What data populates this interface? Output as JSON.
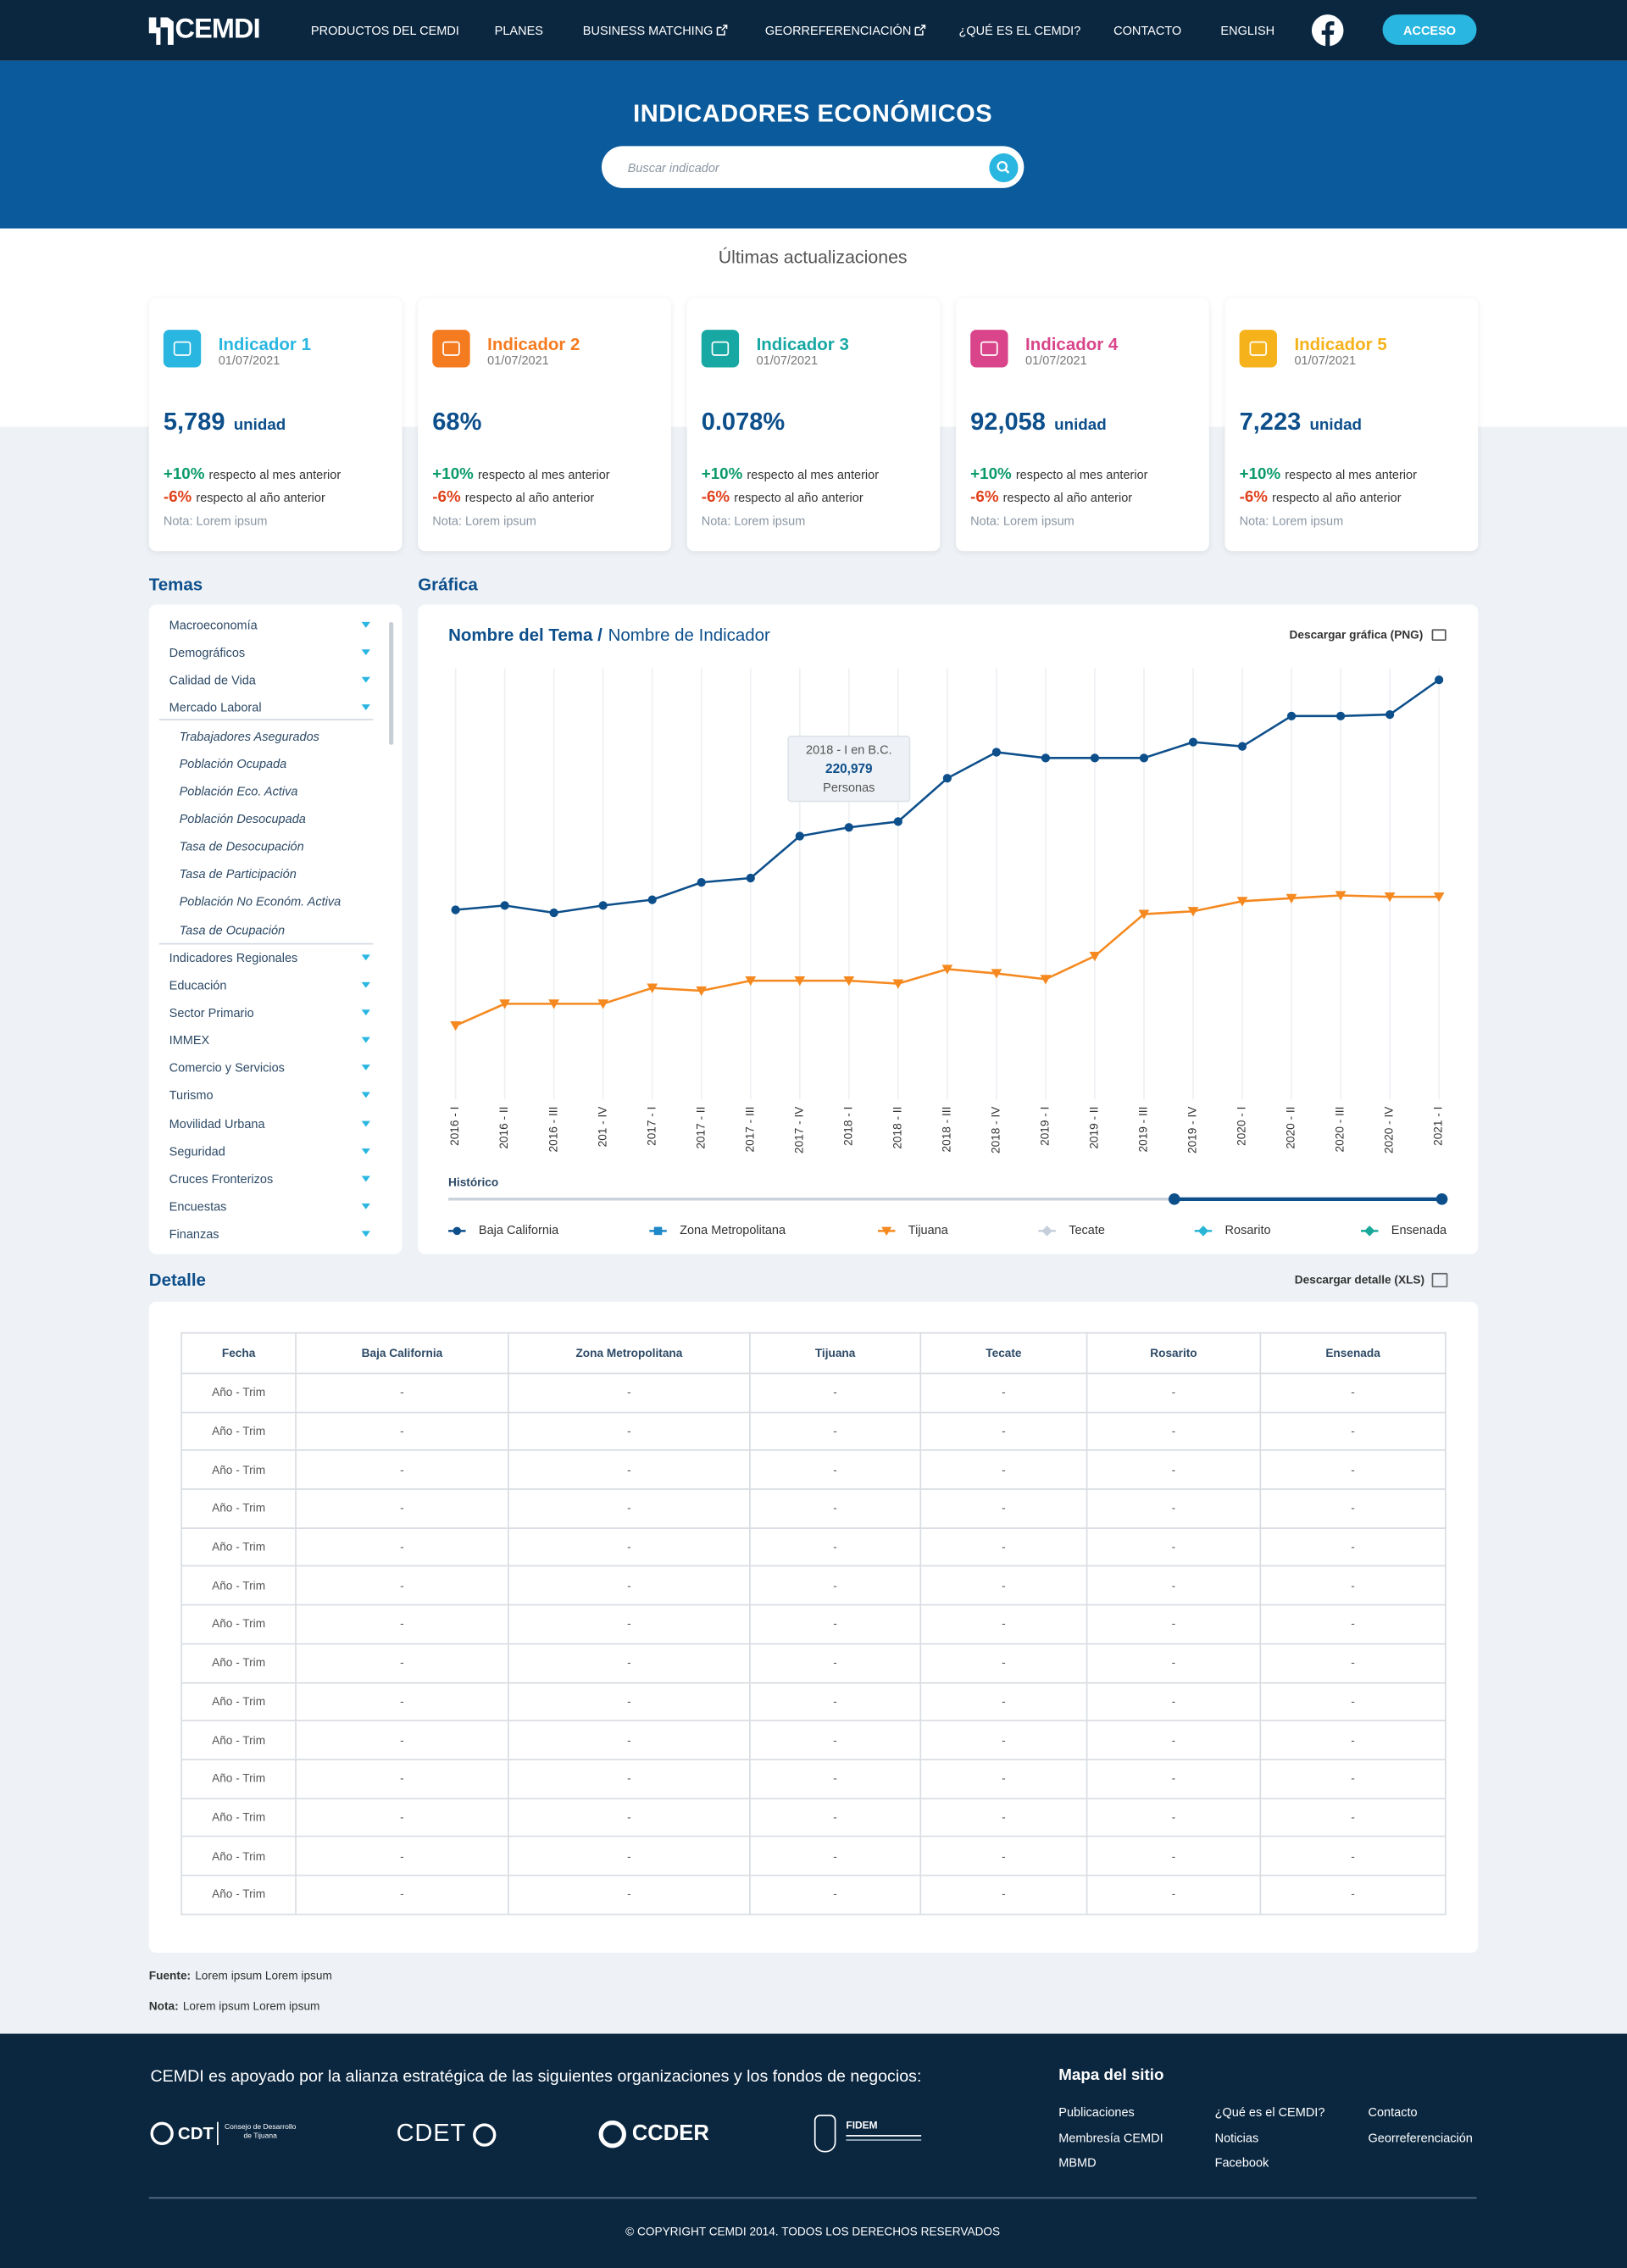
{
  "nav": {
    "logo": "CEMDI",
    "menu": [
      "PRODUCTOS DEL CEMDI",
      "PLANES",
      "BUSINESS MATCHING",
      "GEORREFERENCIACIÓN",
      "¿QUÉ ES EL CEMDI?",
      "CONTACTO",
      "ENGLISH"
    ],
    "button": "ACCESO"
  },
  "hero": {
    "title": "INDICADORES ECONÓMICOS",
    "search_placeholder": "Buscar indicador"
  },
  "updates": {
    "title": "Últimas actualizaciones",
    "cards": [
      {
        "name": "Indicador 1",
        "date": "01/07/2021",
        "value": "5,789",
        "unit": "unidad",
        "month_change": "+10%",
        "month_text": "respecto al mes anterior",
        "year_change": "-6%",
        "year_text": "respecto al año anterior",
        "note": "Nota: Lorem ipsum",
        "color": "#29b6e0"
      },
      {
        "name": "Indicador 2",
        "date": "01/07/2021",
        "value": "68%",
        "month_change": "+10%",
        "month_text": "respecto al mes anterior",
        "year_change": "-6%",
        "year_text": "respecto al año anterior",
        "note": "Nota: Lorem ipsum",
        "color": "#f47b20"
      },
      {
        "name": "Indicador 3",
        "date": "01/07/2021",
        "value": "0.078%",
        "month_change": "+10%",
        "month_text": "respecto al mes anterior",
        "year_change": "-6%",
        "year_text": "respecto al año anterior",
        "note": "Nota: Lorem ipsum",
        "color": "#17a8a3"
      },
      {
        "name": "Indicador 4",
        "date": "01/07/2021",
        "value": "92,058",
        "unit": "unidad",
        "month_change": "+10%",
        "month_text": "respecto al mes anterior",
        "year_change": "-6%",
        "year_text": "respecto al año anterior",
        "note": "Nota: Lorem ipsum",
        "color": "#d9448a"
      },
      {
        "name": "Indicador 5",
        "date": "01/07/2021",
        "value": "7,223",
        "unit": "unidad",
        "month_change": "+10%",
        "month_text": "respecto al mes anterior",
        "year_change": "-6%",
        "year_text": "respecto al año anterior",
        "note": "Nota: Lorem ipsum",
        "color": "#f5b21b"
      }
    ]
  },
  "sidebar": {
    "title": "Temas",
    "items": [
      {
        "label": "Macroeconomía"
      },
      {
        "label": "Demográficos"
      },
      {
        "label": "Calidad de Vida"
      },
      {
        "label": "Mercado Laboral",
        "children": [
          "Trabajadores Asegurados",
          "Población Ocupada",
          "Población Eco. Activa",
          "Población Desocupada",
          "Tasa de Desocupación",
          "Tasa de Participación",
          "Población No Económ. Activa",
          "Tasa de Ocupación"
        ]
      },
      {
        "label": "Indicadores Regionales"
      },
      {
        "label": "Educación"
      },
      {
        "label": "Sector Primario"
      },
      {
        "label": "IMMEX"
      },
      {
        "label": "Comercio y Servicios"
      },
      {
        "label": "Turismo"
      },
      {
        "label": "Movilidad Urbana"
      },
      {
        "label": "Seguridad"
      },
      {
        "label": "Cruces Fronterizos"
      },
      {
        "label": "Encuestas"
      },
      {
        "label": "Finanzas"
      }
    ]
  },
  "chart_panel": {
    "section_title": "Gráfica",
    "topic": "Nombre del Tema /",
    "indicator": "Nombre de Indicador",
    "download": "Descargar gráfica (PNG)",
    "range_label": "Histórico"
  },
  "chart_data": {
    "type": "line",
    "categories": [
      "2016 - I",
      "2016 - II",
      "2016 - III",
      "201 - IV",
      "2017 - I",
      "2017 - II",
      "2017 - III",
      "2017 - IV",
      "2018 - I",
      "2018 - II",
      "2018 - III",
      "2018 - IV",
      "2019 - I",
      "2019 - II",
      "2019 - III",
      "2019 - IV",
      "2020 - I",
      "2020 - II",
      "2020 - III",
      "2020 - IV",
      "2021 - I"
    ],
    "series": [
      {
        "name": "Baja California",
        "color": "#0d4f8b",
        "marker": "circle",
        "values": [
          154000,
          157500,
          151600,
          157500,
          162200,
          176300,
          179800,
          213900,
          220979,
          225700,
          260900,
          282100,
          277400,
          277400,
          277400,
          290300,
          286800,
          311500,
          311500,
          312700,
          340900
        ],
        "value_labels": [
          null,
          null,
          null,
          null,
          null,
          null,
          null,
          null,
          "220,979",
          null,
          null,
          null,
          null,
          null,
          null,
          null,
          null,
          null,
          null,
          null,
          null
        ]
      },
      {
        "name": "Zona Metropolitana",
        "color": "#1e88c9",
        "marker": "square",
        "values": [
          null,
          null,
          null,
          null,
          null,
          null,
          null,
          null,
          null,
          null,
          null,
          null,
          null,
          null,
          null,
          null,
          null,
          null,
          null,
          null,
          null
        ]
      },
      {
        "name": "Tijuana",
        "color": "#f5891f",
        "marker": "triangle-down",
        "values": [
          59900,
          77600,
          77600,
          77600,
          90500,
          88200,
          96400,
          96400,
          96400,
          94000,
          105800,
          102300,
          97600,
          116400,
          150500,
          152800,
          161000,
          163400,
          165700,
          164600,
          164600
        ]
      },
      {
        "name": "Tecate",
        "color": "#c5cfdb",
        "marker": "diamond",
        "values": [
          null,
          null,
          null,
          null,
          null,
          null,
          null,
          null,
          null,
          null,
          null,
          null,
          null,
          null,
          null,
          null,
          null,
          null,
          null,
          null,
          null
        ]
      },
      {
        "name": "Rosarito",
        "color": "#29b6d6",
        "marker": "diamond",
        "values": [
          null,
          null,
          null,
          null,
          null,
          null,
          null,
          null,
          null,
          null,
          null,
          null,
          null,
          null,
          null,
          null,
          null,
          null,
          null,
          null,
          null
        ]
      },
      {
        "name": "Ensenada",
        "color": "#1aa89a",
        "marker": "diamond",
        "values": [
          null,
          null,
          null,
          null,
          null,
          null,
          null,
          null,
          null,
          null,
          null,
          null,
          null,
          null,
          null,
          null,
          null,
          null,
          null,
          null,
          null
        ]
      }
    ],
    "tooltip": {
      "title": "2018 - I en B.C.",
      "unit": "Personas"
    }
  },
  "detail": {
    "title": "Detalle",
    "download": "Descargar detalle (XLS)",
    "headers": [
      "Fecha",
      "Baja California",
      "Zona Metropolitana",
      "Tijuana",
      "Tecate",
      "Rosarito",
      "Ensenada"
    ],
    "rows": [
      [
        "Año - Trim",
        "-",
        "-",
        "-",
        "-",
        "-",
        "-"
      ],
      [
        "Año - Trim",
        "-",
        "-",
        "-",
        "-",
        "-",
        "-"
      ],
      [
        "Año - Trim",
        "-",
        "-",
        "-",
        "-",
        "-",
        "-"
      ],
      [
        "Año - Trim",
        "-",
        "-",
        "-",
        "-",
        "-",
        "-"
      ],
      [
        "Año - Trim",
        "-",
        "-",
        "-",
        "-",
        "-",
        "-"
      ],
      [
        "Año - Trim",
        "-",
        "-",
        "-",
        "-",
        "-",
        "-"
      ],
      [
        "Año - Trim",
        "-",
        "-",
        "-",
        "-",
        "-",
        "-"
      ],
      [
        "Año - Trim",
        "-",
        "-",
        "-",
        "-",
        "-",
        "-"
      ],
      [
        "Año - Trim",
        "-",
        "-",
        "-",
        "-",
        "-",
        "-"
      ],
      [
        "Año - Trim",
        "-",
        "-",
        "-",
        "-",
        "-",
        "-"
      ],
      [
        "Año - Trim",
        "-",
        "-",
        "-",
        "-",
        "-",
        "-"
      ],
      [
        "Año - Trim",
        "-",
        "-",
        "-",
        "-",
        "-",
        "-"
      ],
      [
        "Año - Trim",
        "-",
        "-",
        "-",
        "-",
        "-",
        "-"
      ],
      [
        "Año - Trim",
        "-",
        "-",
        "-",
        "-",
        "-",
        "-"
      ]
    ]
  },
  "notes": [
    {
      "label": "Fuente:",
      "text": "Lorem ipsum Lorem ipsum"
    },
    {
      "label": "Nota:",
      "text": "Lorem ipsum Lorem ipsum"
    }
  ],
  "footer": {
    "supporters": "CEMDI es apoyado por la alianza estratégica de las siguientes organizaciones y los fondos de negocios:",
    "logos": [
      "CDT",
      "Consejo de Desarrollo de Tijuana",
      "CDET",
      "CCDER",
      "FIDEM"
    ],
    "sitemap_title": "Mapa del sitio",
    "links": [
      "Publicaciones",
      "¿Qué es el CEMDI?",
      "Contacto",
      "Membresía CEMDI",
      "Noticias",
      "Georreferenciación",
      "MBMD",
      "Facebook"
    ],
    "copyright": "© COPYRIGHT CEMDI 2014. TODOS LOS DERECHOS RESERVADOS"
  }
}
